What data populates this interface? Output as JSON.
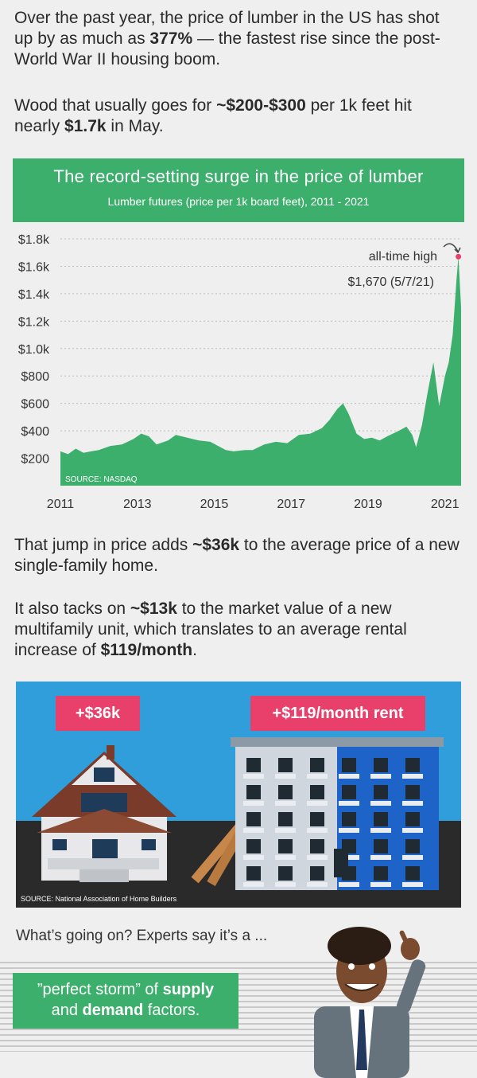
{
  "intro": {
    "p1_a": "Over the past year, the price of lumber in the US has shot up by as much as ",
    "p1_b": "377%",
    "p1_c": " — the fastest rise since the post-World War II housing boom.",
    "p2_a": "Wood that usually goes for ",
    "p2_b": "~$200-$300",
    "p2_c": " per 1k feet hit nearly ",
    "p2_d": "$1.7k",
    "p2_e": " in May."
  },
  "chart_data": {
    "type": "area",
    "title": "The record-setting surge in the price of lumber",
    "subtitle": "Lumber futures (price per 1k board feet), 2011 - 2021",
    "ylim": [
      0,
      1800
    ],
    "xlim": [
      2011,
      2021.42
    ],
    "y_ticks": [
      200,
      400,
      600,
      800,
      1000,
      1200,
      1400,
      1600,
      1800
    ],
    "y_tick_labels": [
      "$200",
      "$400",
      "$600",
      "$800",
      "$1.0k",
      "$1.2k",
      "$1.4k",
      "$1.6k",
      "$1.8k"
    ],
    "x_ticks": [
      2011,
      2013,
      2015,
      2017,
      2019,
      2021
    ],
    "x_tick_labels": [
      "2011",
      "2013",
      "2015",
      "2017",
      "2019",
      "2021"
    ],
    "grid": true,
    "source": "SOURCE: NASDAQ",
    "annotation": {
      "label": "all-time high",
      "value_label": "$1,670 (5/7/21)",
      "x": 2021.35,
      "y": 1670
    },
    "series": [
      {
        "color": "#3daf6c",
        "points": [
          [
            2011.0,
            250
          ],
          [
            2011.2,
            230
          ],
          [
            2011.4,
            270
          ],
          [
            2011.6,
            240
          ],
          [
            2011.8,
            250
          ],
          [
            2012.0,
            260
          ],
          [
            2012.3,
            290
          ],
          [
            2012.6,
            300
          ],
          [
            2012.9,
            340
          ],
          [
            2013.1,
            380
          ],
          [
            2013.3,
            360
          ],
          [
            2013.5,
            300
          ],
          [
            2013.8,
            330
          ],
          [
            2014.0,
            370
          ],
          [
            2014.3,
            350
          ],
          [
            2014.6,
            330
          ],
          [
            2014.9,
            320
          ],
          [
            2015.1,
            290
          ],
          [
            2015.3,
            260
          ],
          [
            2015.5,
            250
          ],
          [
            2015.8,
            260
          ],
          [
            2016.0,
            260
          ],
          [
            2016.3,
            300
          ],
          [
            2016.6,
            320
          ],
          [
            2016.9,
            310
          ],
          [
            2017.2,
            370
          ],
          [
            2017.5,
            380
          ],
          [
            2017.8,
            420
          ],
          [
            2018.0,
            480
          ],
          [
            2018.2,
            560
          ],
          [
            2018.35,
            600
          ],
          [
            2018.5,
            520
          ],
          [
            2018.7,
            380
          ],
          [
            2018.9,
            340
          ],
          [
            2019.1,
            350
          ],
          [
            2019.3,
            330
          ],
          [
            2019.5,
            360
          ],
          [
            2019.8,
            400
          ],
          [
            2020.0,
            430
          ],
          [
            2020.15,
            370
          ],
          [
            2020.25,
            280
          ],
          [
            2020.4,
            440
          ],
          [
            2020.55,
            680
          ],
          [
            2020.7,
            900
          ],
          [
            2020.85,
            580
          ],
          [
            2021.0,
            800
          ],
          [
            2021.1,
            900
          ],
          [
            2021.2,
            1100
          ],
          [
            2021.3,
            1500
          ],
          [
            2021.35,
            1670
          ],
          [
            2021.42,
            1300
          ]
        ]
      }
    ]
  },
  "middle": {
    "p3_a": "That jump in price adds ",
    "p3_b": "~$36k",
    "p3_c": " to the average price of a new single-family home.",
    "p4_a": "It also tacks on ",
    "p4_b": "~$13k",
    "p4_c": " to the market value of a new multifamily unit, which translates to an average rental increase of ",
    "p4_d": "$119/month",
    "p4_e": "."
  },
  "illustration": {
    "badge_house": "+$36k",
    "badge_rent": "+$119/month rent",
    "source": "SOURCE: National Association of Home Builders"
  },
  "closing": {
    "question": "What’s going on? Experts say it’s a ...",
    "bubble_a": "”perfect storm” of ",
    "bubble_b": "supply",
    "bubble_c": " and ",
    "bubble_d": "demand",
    "bubble_e": " factors."
  }
}
